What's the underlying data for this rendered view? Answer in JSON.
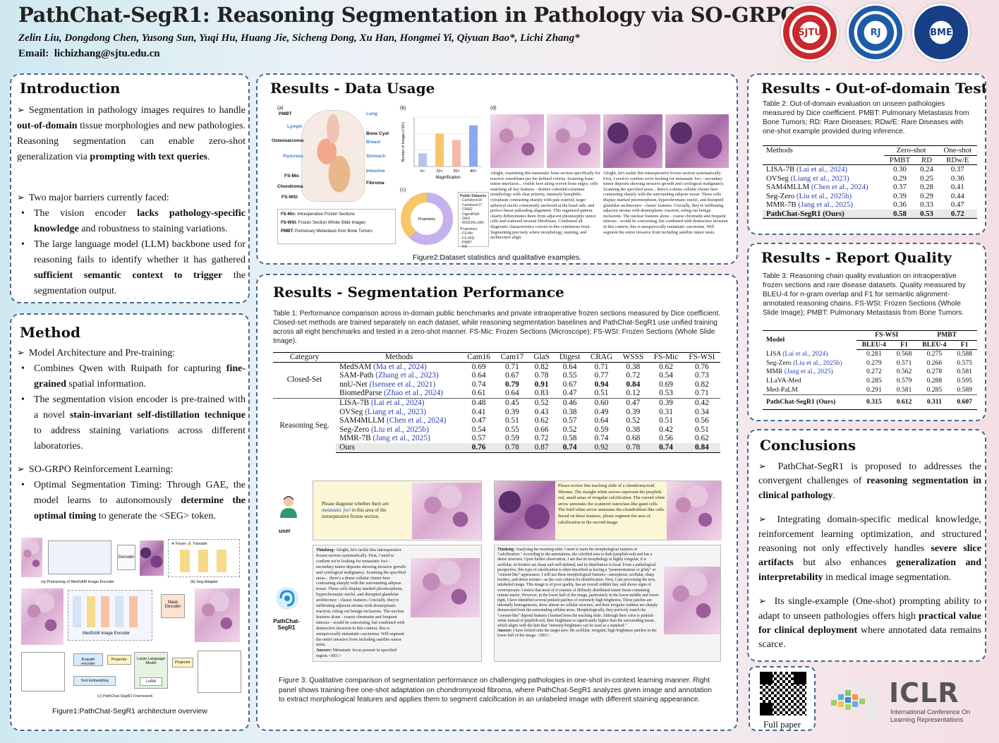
{
  "header": {
    "title": "PathChat-SegR1: Reasoning Segmentation in Pathology via SO-GRPO",
    "authors": "Zelin Liu, Dongdong Chen, Yusong Sun, Yuqi Hu, Huang Jie, Sicheng Dong, Xu Han, Hongmei Yi, Qiyuan Bao*, Lichi Zhang*",
    "email_label": "Email:",
    "email": "lichizhang@sjtu.edu.cn"
  },
  "logos": [
    "SJTU",
    "RJ",
    "BME"
  ],
  "intro": {
    "title": "Introduction",
    "p1_a": "Segmentation in pathology images requires to handle ",
    "p1_b": "out-of-domain",
    "p1_c": " tissue morphologies and new pathologies. Reasoning segmentation can enable zero-shot generalization via ",
    "p1_d": "prompting with text queries",
    "p1_e": ".",
    "p2": "Two major barriers currently faced:",
    "b1_a": "The vision encoder ",
    "b1_b": "lacks pathology-specific knowledge",
    "b1_c": " and robustness to staining variations.",
    "b2_a": "The large language model (LLM) backbone used for reasoning fails to identify whether it has gathered ",
    "b2_b": "sufficient semantic context to trigger",
    "b2_c": " the segmentation output."
  },
  "method": {
    "title": "Method",
    "h1": "Model Architecture and Pre-training:",
    "b1_a": "Combines Qwen with Ruipath for capturing ",
    "b1_b": "fine-grained",
    "b1_c": " spatial information.",
    "b2_a": "The segmentation vision encoder is pre-trained with a novel ",
    "b2_b": "stain-invariant self-distillation technique",
    "b2_c": " to address staining variations across different laboratories.",
    "h2": "SO-GRPO Reinforcement Learning:",
    "b3_a": "Optimal Segmentation Timing: Through GAE, the model learns to autonomously ",
    "b3_b": "determine the optimal timing",
    "b3_c": " to generate the <SEG> token.",
    "fig_a": "(a) Pretraining of MedSAM Image Encoder",
    "fig_b": "(b) Seg-Adapter",
    "fig_c": "(c) PathChat-SegR1 Framework",
    "blk_encoder": "MedSAM Image Encoder",
    "blk_ruipath": "Ruipath encoder",
    "blk_projector": "Projector",
    "blk_llm": "Large Language Model",
    "blk_lora": "LoRA",
    "blk_text": "Text Embedding",
    "blk_mask": "Mask Decoder",
    "blk_decoder": "Decoder",
    "blk_frozen": "Frozen",
    "blk_trainable": "Trainable",
    "caption": "Figure1:PathChat-SegR1 architecture overview"
  },
  "data_usage": {
    "title": "Results - Data Usage",
    "labels_a": [
      "PMBT",
      "Lymph",
      "Osteosarcoma",
      "Pancreas",
      "FS-Mic",
      "Chondroma",
      "FS-WSI",
      "Lung",
      "Bone Cyst",
      "Breast",
      "Stomach",
      "Intestine",
      "Fibroma"
    ],
    "legend": [
      {
        "k": "FS-Mic:",
        "v": "Intraoperative Frozen Sections"
      },
      {
        "k": "FS-WSI:",
        "v": "Frozen Section Whole Slide Images"
      },
      {
        "k": "PMBT:",
        "v": "Pulmonary Metastasis from Bone Tumors"
      }
    ],
    "bar": {
      "xlabel": "Magnification",
      "ylabel": "Number of Images (×10⁴)",
      "categories": [
        "5×",
        "10×",
        "20×",
        "40×"
      ],
      "values": [
        0.8,
        2.0,
        1.6,
        2.5
      ],
      "colors": [
        "#b8c4f0",
        "#f7c66b",
        "#f6b8a8",
        "#8ea8f0"
      ]
    },
    "donut": {
      "center": "Proprietary",
      "legend_title1": "Public",
      "legend_title2": "Public Datasets",
      "public": [
        "Camelyon16",
        "Camelyon17",
        "CRAG",
        "DigestPath",
        "GlaS",
        "WSSS4LUAD"
      ],
      "proprietary": [
        "FS-Mic",
        "FS-WSI",
        "PMBT",
        "RD"
      ],
      "pct": [
        "61.8%",
        "38.2%",
        "12.2%",
        "10.5%",
        "44.5%",
        "1.2%",
        "13.3%"
      ]
    },
    "panel_labels": [
      "(a)",
      "(b)",
      "(c)",
      "(d)"
    ],
    "text_d1": "Alright, examining this metastatic bone section specifically for reactive osteoblasts per the defined criteria. Scanning bone-tumor interfaces... visible here along woven bone edges: cells matching all key features - distinct cuboidal/columnar morphology with clear polarity, intensely basophilic cytoplasm contrasting sharply with pale osteoid, larger spherical nuclei consistently anchored at the basal side, and perfect linear palisading alignment. This organized pattern clearly differentiates them from adjacent pleomorphic tumor cells and scattered stromal fibroblasts. Confirmed all diagnostic characteristics coexist in this continuous front. Segmenting precisely where morphology, staining, and architecture align.",
    "text_d2": "Alright, let's tackle this intraoperative frozen section systematically. First, I need to confirm we're looking for metastatic foci - secondary tumor deposits showing invasive growth and cytological malignancy. Scanning the specified areas... there's a dense cellular cluster here contrasting sharply with the surrounding adipose tissue. These cells display marked pleomorphism, hyperchromatic nuclei, and disrupted glandular architecture - classic features. Crucially, they're infiltrating adjacent stroma with desmoplastic reaction, ruling out benign inclusions. The nuclear features alone - coarse chromatin and frequent mitoses - would be concerning, but combined with destructive invasion in this context, this is unequivocally metastatic carcinoma. Will segment the entire invasive front including satellite tumor nests.",
    "caption": "Figure2:Dataset statistics and qualitative examples."
  },
  "segperf": {
    "title": "Results - Segmentation Performance",
    "caption": "Table 1: Performance comparison across in-domain public benchmarks and private intraoperative frozen sections measured by Dice coefficient. Closed-set methods are trained separately on each dataset, while reasoning segmentation baselines and PathChat-SegR1 use unified training across all eight benchmarks and tested in a zero-shot manner. FS-Mic: Frozen Sections (Microscope); FS-WSI: Frozen Sections (Whole Slide Image).",
    "headers": [
      "Category",
      "Methods",
      "Cam16",
      "Cam17",
      "GlaS",
      "Digest",
      "CRAG",
      "WSSS",
      "FS-Mic",
      "FS-WSI"
    ],
    "groups": [
      {
        "category": "Closed-Set",
        "rows": [
          {
            "m": "MedSAM",
            "c": "(Ma et al., 2024)",
            "v": [
              "0.69",
              "0.71",
              "0.82",
              "0.64",
              "0.71",
              "0.38",
              "0.62",
              "0.76"
            ],
            "b": []
          },
          {
            "m": "SAM-Path",
            "c": "(Zhang et al., 2023)",
            "v": [
              "0.64",
              "0.67",
              "0.78",
              "0.55",
              "0.77",
              "0.72",
              "0.54",
              "0.73"
            ],
            "b": []
          },
          {
            "m": "nnU-Net",
            "c": "(Isensee et al., 2021)",
            "v": [
              "0.74",
              "0.79",
              "0.91",
              "0.67",
              "0.94",
              "0.84",
              "0.69",
              "0.82"
            ],
            "b": [
              1,
              2,
              4,
              5
            ]
          },
          {
            "m": "BiomedParse",
            "c": "(Zhao et al., 2024)",
            "v": [
              "0.61",
              "0.64",
              "0.83",
              "0.47",
              "0.51",
              "0.12",
              "0.53",
              "0.71"
            ],
            "b": []
          }
        ]
      },
      {
        "category": "Reasoning Seg.",
        "rows": [
          {
            "m": "LISA-7B",
            "c": "(Lai et al., 2024)",
            "v": [
              "0.48",
              "0.45",
              "0.52",
              "0.46",
              "0.60",
              "0.47",
              "0.39",
              "0.42"
            ],
            "b": []
          },
          {
            "m": "OVSeg",
            "c": "(Liang et al., 2023)",
            "v": [
              "0.41",
              "0.39",
              "0.43",
              "0.38",
              "0.49",
              "0.39",
              "0.31",
              "0.34"
            ],
            "b": []
          },
          {
            "m": "SAM4MLLM",
            "c": "(Chen et al., 2024)",
            "v": [
              "0.47",
              "0.51",
              "0.62",
              "0.57",
              "0.64",
              "0.52",
              "0.51",
              "0.56"
            ],
            "b": []
          },
          {
            "m": "Seg-Zero",
            "c": "(Liu et al., 2025b)",
            "v": [
              "0.54",
              "0.55",
              "0.66",
              "0.52",
              "0.59",
              "0.38",
              "0.42",
              "0.51"
            ],
            "b": []
          },
          {
            "m": "MMR-7B",
            "c": "(Jang et al., 2025)",
            "v": [
              "0.57",
              "0.59",
              "0.72",
              "0.58",
              "0.74",
              "0.68",
              "0.56",
              "0.62"
            ],
            "b": []
          },
          {
            "m": "Ours",
            "c": "",
            "v": [
              "0.76",
              "0.78",
              "0.87",
              "0.74",
              "0.92",
              "0.78",
              "0.74",
              "0.84"
            ],
            "b": [
              0,
              3,
              6,
              7
            ],
            "hl": true
          }
        ]
      }
    ],
    "user_label": "user",
    "bot_label": "PathChat-SegR1",
    "q1_a": "Please diagnose whether there are ",
    "q1_b": "metastatic foci",
    "q1_c": " in this area of the intraoperative frozen section.",
    "q2": "Please review this teaching slide of a chondromyxoid fibroma. The straight white arrows represent the purplish-red, small areas of irregular calcification. The curved white arrow annotates the scattered osteoclast-like giant cells. The bold white arrow annotates the chondroblast-like cells. Based on these features, please segment the area of calcification in the second image.",
    "think_label": "Thinking:",
    "answer_label": "Answer:",
    "a1_think": "Alright, let's tackle this intraoperative frozen section systematically. First, I need to confirm we're looking for metastatic foci - secondary tumor deposits showing invasive growth and cytological malignancy. Scanning the specified areas... there's a dense cellular cluster here contrasting sharply with the surrounding adipose tissue. These cells display marked pleomorphism, hyperchromatic nuclei, and disrupted glandular architecture - classic features. Crucially, they're infiltrating adjacent stroma with desmoplastic reaction, ruling out benign inclusions. The nuclear features alone - coarse chromatin and frequent mitoses - would be concerning, but combined with destructive invasion in this context, this is unequivocally metastatic carcinoma. Will segment the entire invasive front including satellite tumor nests.",
    "a1_answer": "Metastatic focus present in specified region.<SEG>",
    "a2_think": "Analyzing the teaching slide. I need to learn the morphological features of \"calcification.\" According to the annotations, the calcified area is dark (purplish-red) and has a dense structure. Upon further observation, I see that its morphology is highly irregular, it is acellular, its borders are sharp and well-defined, and its distribution is focal. From a pathological perspective, this type of calcification is often described as having a \"psammomatous or gritty\" or \"cement-like\" appearance. I will use these morphological features—amorphous, acellular, sharp borders, and dense texture—as the core criteria for identification. Next, I am processing the new, unlabeled image. This image is of poor quality, has an overall reddish hue, and shows signs of overexposure. I notice that most of it consists of diffusely distributed tumor tissue containing minute nuclei. However, in the lower half of the image, particularly in the lower-middle and lower-right, I have identified several pinkish patches of extremely high brightness. These patches are internally homogeneous, show almost no cellular structure, and their irregular outlines are sharply demarcated from the surrounding cellular areas. Morphologically, they perfectly match the \"cement-like\" deposit features I learned from the teaching slide. Although their color is pinkish-white instead of purplish-red, their brightness is significantly higher than the surrounding tissue, which aligns with the hint that \"intensity/brightness can be used as a standard.\"",
    "a2_answer": "I have locked onto the target area: the acellular, irregular, high-brightness patches in the lower half of the image. <SEG>",
    "fig_caption": "Figure 3: Qualitative comparison of segmentation performance on challenging pathologies in one-shot in-context learning manner. Right panel shows training-free one-shot adaptation on chondromyxoid fibroma, where PathChat-SegR1 analyzes given image and annotation to extract morphological features and applies them to segment calcification in an unlabeled image with different staining appearance."
  },
  "ood": {
    "title": "Results - Out-of-domain Test",
    "caption": "Table 2: Out-of-domain evaluation on unseen pathologies measured by Dice coefficient. PMBT: Pulmonary Metastasis from Bone Tumors; RD: Rare Diseases; RDw/E: Rare Diseases with one-shot example provided during inference.",
    "h_methods": "Methods",
    "h_zero": "Zero-shot",
    "h_one": "One-shot",
    "h_pmbt": "PMBT",
    "h_rd": "RD",
    "h_rdwe": "RDw/E",
    "rows": [
      {
        "m": "LISA-7B",
        "c": "(Lai et al., 2024)",
        "v": [
          "0.30",
          "0.24",
          "0.37"
        ]
      },
      {
        "m": "OVSeg",
        "c": "(Liang et al., 2023)",
        "v": [
          "0.29",
          "0.25",
          "0.36"
        ]
      },
      {
        "m": "SAM4MLLM",
        "c": "(Chen et al., 2024)",
        "v": [
          "0.37",
          "0.28",
          "0.41"
        ]
      },
      {
        "m": "Seg-Zero",
        "c": "(Liu et al., 2025b)",
        "v": [
          "0.39",
          "0.29",
          "0.44"
        ]
      },
      {
        "m": "MMR-7B",
        "c": "(Jang et al., 2025)",
        "v": [
          "0.36",
          "0.33",
          "0.47"
        ]
      },
      {
        "m": "PathChat-SegR1 (Ours)",
        "c": "",
        "v": [
          "0.58",
          "0.53",
          "0.72"
        ],
        "hl": true
      }
    ]
  },
  "report": {
    "title": "Results - Report Quality",
    "caption": "Table 3: Reasoning chain quality evaluation on intraoperative frozen sections and rare disease datasets. Quality measured by BLEU-4 for n-gram overlap and F1 for semantic alignment-annotated reasoning chains. FS-WSI: Frozen Sections (Whole Slide Image); PMBT: Pulmonary Metastasis from Bone Tumors.",
    "h_model": "Model",
    "h_fswsi": "FS-WSI",
    "h_pmbt": "PMBT",
    "h_bleu": "BLEU-4",
    "h_f1": "F1",
    "rows": [
      {
        "m": "LISA",
        "c": "(Lai et al., 2024)",
        "v": [
          "0.281",
          "0.568",
          "0.275",
          "0.588"
        ]
      },
      {
        "m": "Seg-Zero",
        "c": "(Liu et al., 2025b)",
        "v": [
          "0.279",
          "0.571",
          "0.266",
          "0.575"
        ]
      },
      {
        "m": "MMR",
        "c": "(Jang et al., 2025)",
        "v": [
          "0.272",
          "0.562",
          "0.278",
          "0.581"
        ]
      },
      {
        "m": "LLaVA-Med",
        "c": "",
        "v": [
          "0.285",
          "0.579",
          "0.288",
          "0.595"
        ]
      },
      {
        "m": "Med-PaLM",
        "c": "",
        "v": [
          "0.291",
          "0.581",
          "0.285",
          "0.589"
        ]
      },
      {
        "m": "PathChat-SegR1 (Ours)",
        "c": "",
        "v": [
          "0.315",
          "0.612",
          "0.311",
          "0.607"
        ],
        "bold": true
      }
    ]
  },
  "conclusions": {
    "title": "Conclusions",
    "p1_a": "PathChat-SegR1 is proposed to addresses the convergent challenges of ",
    "p1_b": "reasoning segmentation in clinical pathology",
    "p1_c": ".",
    "p2_a": "Integrating domain-specific medical knowledge, reinforcement learning optimization, and structured reasoning not only effectively handles ",
    "p2_b": "severe slice artifacts",
    "p2_c": " but also enhances ",
    "p2_d": "generalization and interpretability",
    "p2_e": " in medical image segmentation.",
    "p3_a": "Its single-example (One-shot) prompting ability to adapt to unseen pathologies offers high ",
    "p3_b": "practical value for clinical deployment",
    "p3_c": " where annotated data remains scarce."
  },
  "footer": {
    "qr_label": "Full paper",
    "iclr": "ICLR",
    "iclr_sub1": "International Conference On",
    "iclr_sub2": "Learning Representations"
  },
  "colors": {
    "border": "#4a6790",
    "cite": "#2b3fb5",
    "highlight": "#e9e9e9"
  }
}
